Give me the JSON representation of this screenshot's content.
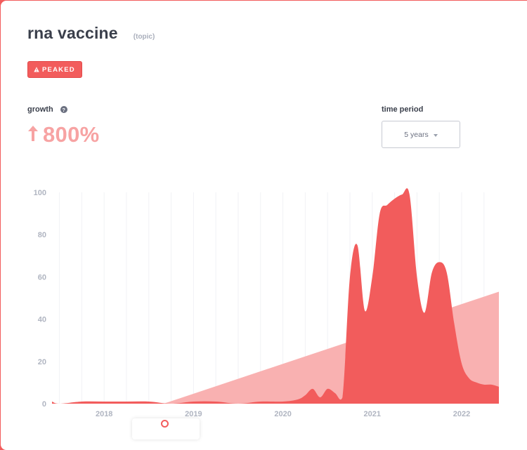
{
  "header": {
    "title": "rna vaccine",
    "type_tag": "(topic)",
    "status_badge": "PEAKED",
    "status_icon": "warning-icon"
  },
  "growth": {
    "label": "growth",
    "help_icon": "question-icon",
    "direction_icon": "arrow-up-icon",
    "value": "800%"
  },
  "time_period": {
    "label": "time period",
    "selected": "5 years"
  },
  "colors": {
    "accent": "#f25c5c",
    "accent_light": "#f7a3a3",
    "trend_fill": "#f9b1b1"
  },
  "chart_data": {
    "type": "area",
    "title": "",
    "xlabel": "",
    "ylabel": "",
    "ylim": [
      0,
      100
    ],
    "yticks": [
      0,
      20,
      40,
      60,
      80,
      100
    ],
    "xticks": [
      "2018",
      "2019",
      "2020",
      "2021",
      "2022"
    ],
    "xlim": [
      "2017-06",
      "2022-06"
    ],
    "grid": "vertical",
    "series": [
      {
        "kind": "search-interest",
        "x": [
          "2017-06",
          "2017-07",
          "2017-10",
          "2018-01",
          "2018-04",
          "2018-07",
          "2018-10",
          "2019-01",
          "2019-04",
          "2019-07",
          "2019-10",
          "2020-01",
          "2020-03",
          "2020-04",
          "2020-05",
          "2020-06",
          "2020-07",
          "2020-08",
          "2020-09",
          "2020-10",
          "2020-11",
          "2020-12",
          "2021-01",
          "2021-02",
          "2021-03",
          "2021-04",
          "2021-05",
          "2021-06",
          "2021-07",
          "2021-08",
          "2021-09",
          "2021-10",
          "2021-11",
          "2021-12",
          "2022-01",
          "2022-02",
          "2022-03",
          "2022-04",
          "2022-05",
          "2022-06"
        ],
        "values": [
          1,
          0,
          1,
          1,
          1,
          1,
          0,
          1,
          1,
          0,
          1,
          1,
          2,
          4,
          7,
          3,
          7,
          5,
          3,
          60,
          75,
          44,
          60,
          90,
          94,
          97,
          99,
          99,
          60,
          43,
          62,
          67,
          62,
          38,
          19,
          12,
          10,
          9,
          9,
          8
        ]
      },
      {
        "kind": "trend",
        "x": [
          "2018-09",
          "2022-06"
        ],
        "values": [
          0,
          53
        ]
      }
    ]
  }
}
